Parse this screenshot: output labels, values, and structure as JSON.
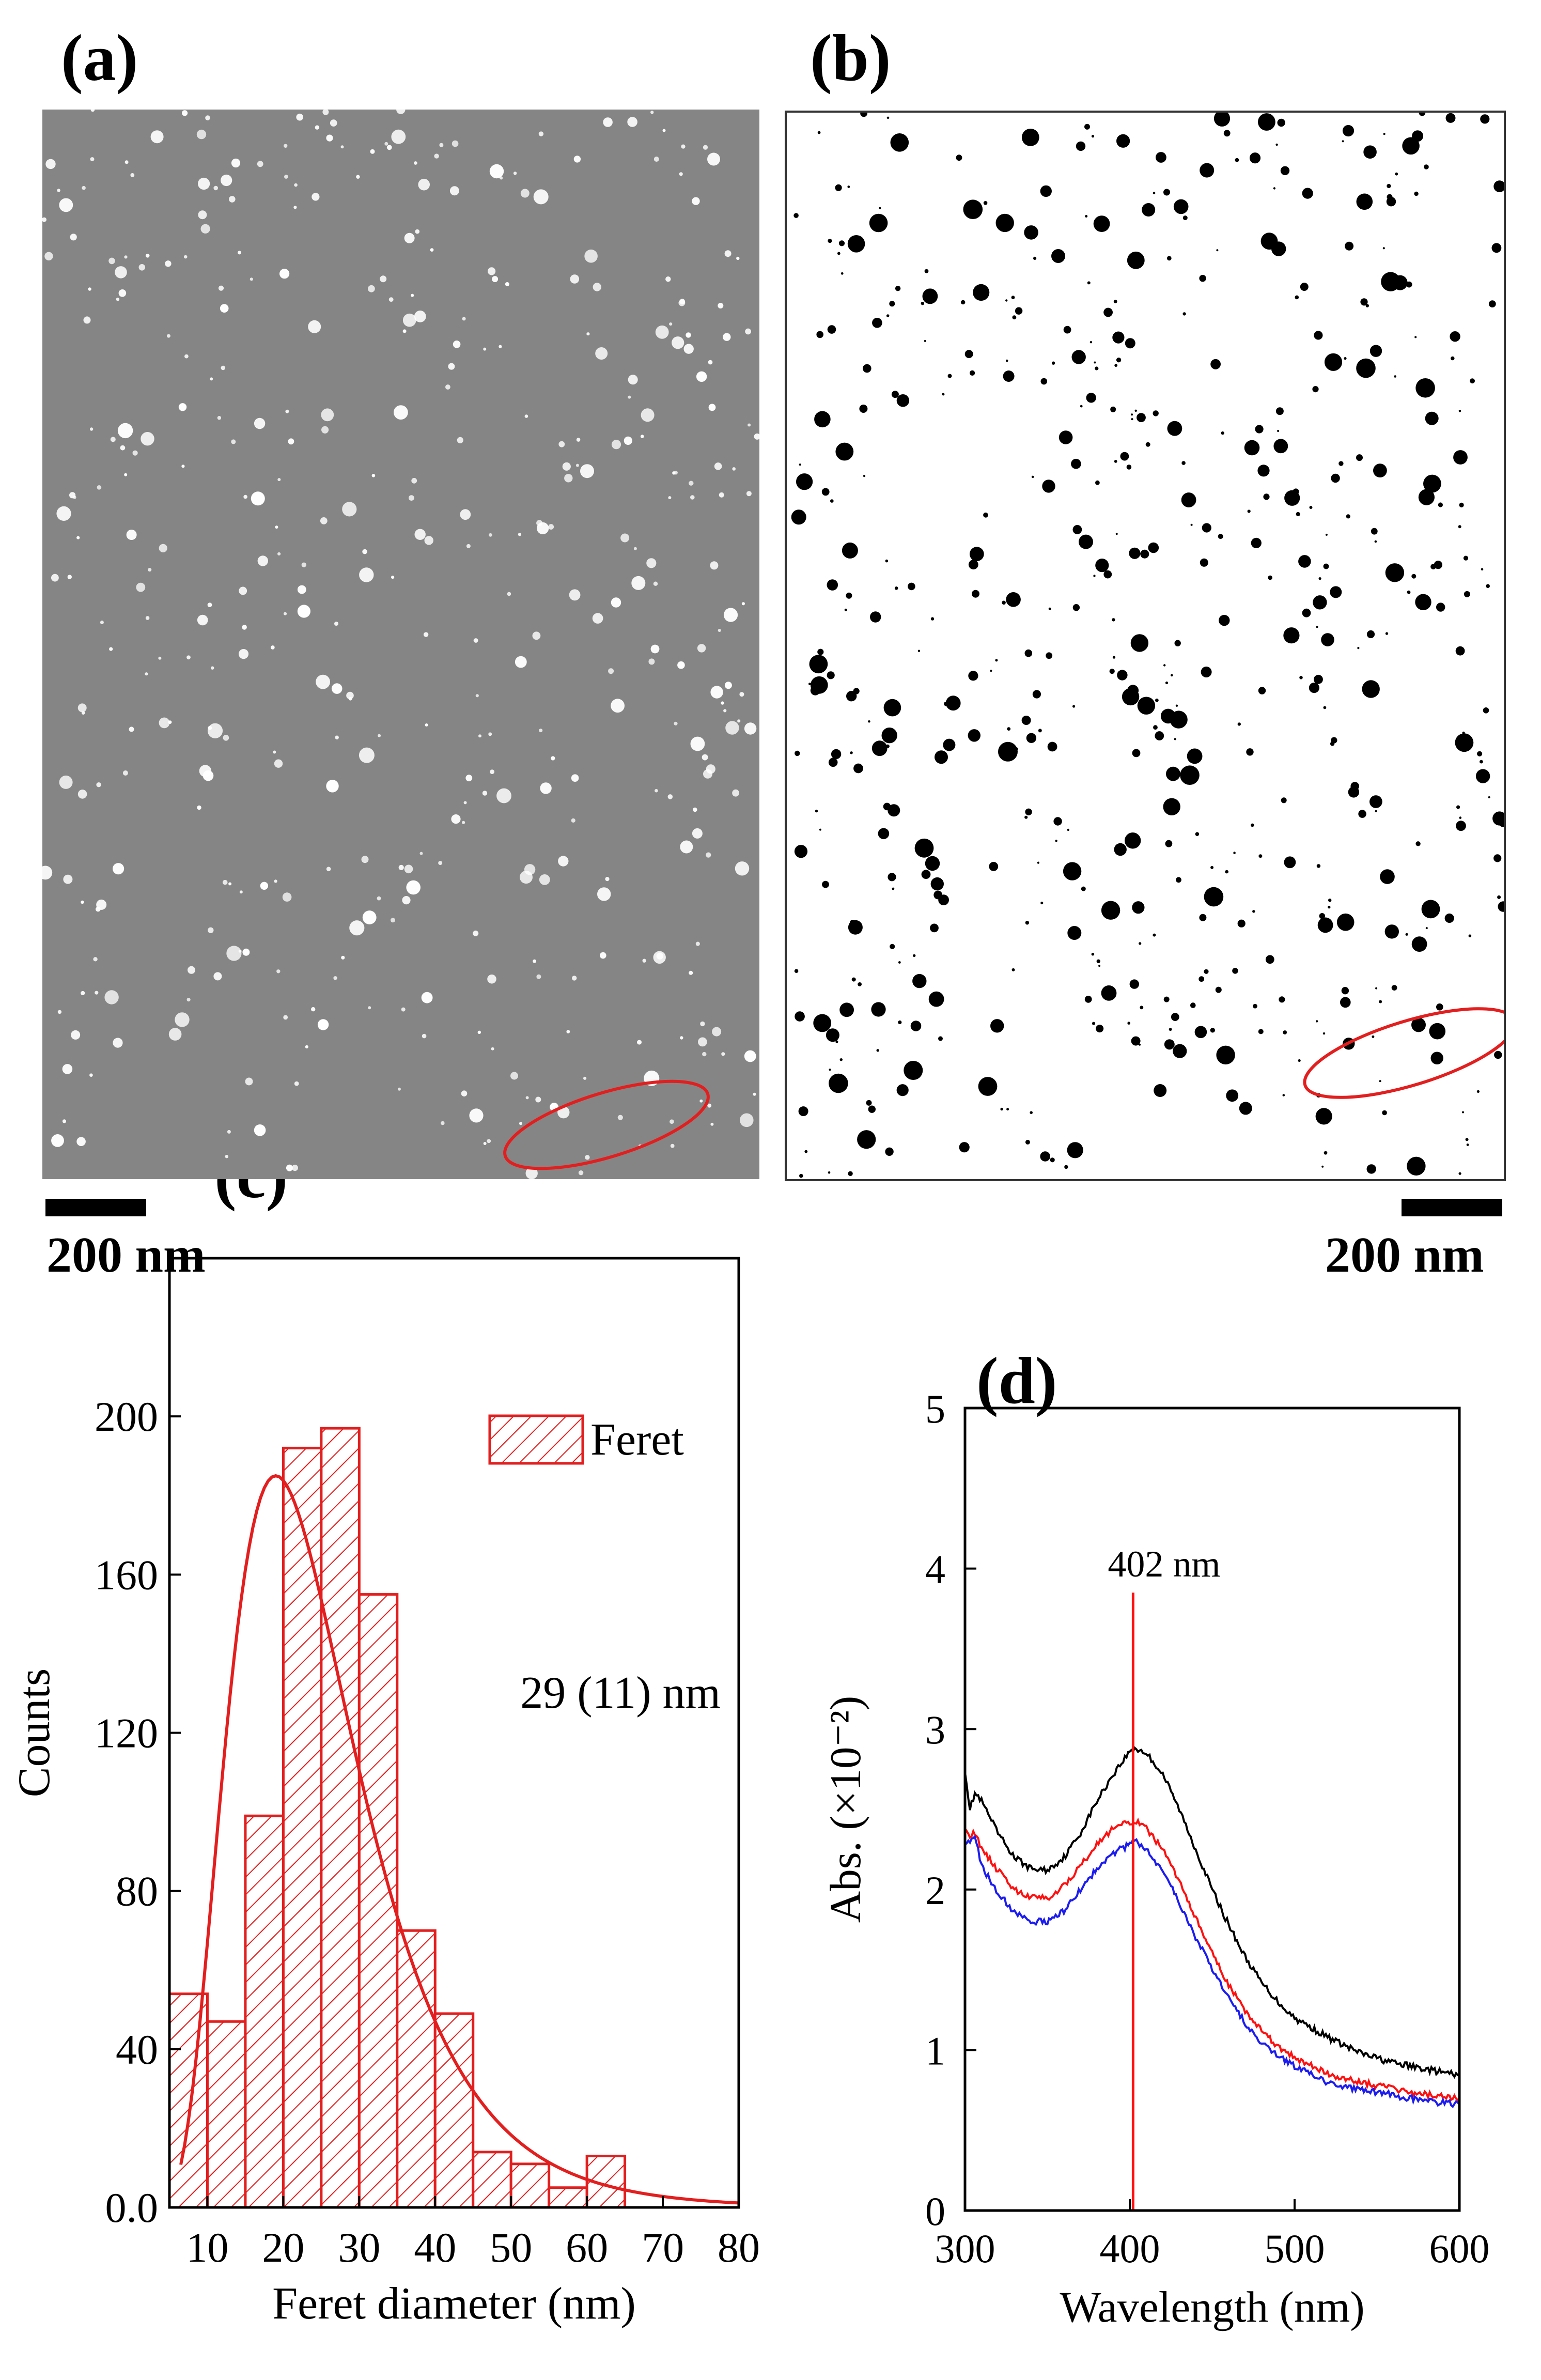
{
  "panels": {
    "a": {
      "label": "(a)",
      "scale_bar": "200 nm"
    },
    "b": {
      "label": "(b)",
      "scale_bar": "200 nm"
    },
    "c": {
      "label": "(c)"
    },
    "d": {
      "label": "(d)"
    }
  },
  "colors": {
    "sem_bg": "#858585",
    "particle_light": "#ffffff",
    "particle_dark": "#000000",
    "highlight": "#e31e1e",
    "hist": "#e31e1e",
    "series_black": "#000000",
    "series_red": "#ff1010",
    "series_blue": "#1c1cf0"
  },
  "chart_data": [
    {
      "type": "bar",
      "title": "(c)",
      "xlabel": "Feret diameter (nm)",
      "ylabel": "Counts",
      "xlim": [
        5,
        80
      ],
      "ylim": [
        0,
        240
      ],
      "xticks": [
        10,
        20,
        30,
        40,
        50,
        60,
        70,
        80
      ],
      "yticks": [
        0,
        40,
        80,
        120,
        160,
        200
      ],
      "ytick_labels": [
        "0.0",
        "40",
        "80",
        "120",
        "160",
        "200"
      ],
      "bin_width": 5,
      "bin_starts": [
        5,
        10,
        15,
        20,
        25,
        30,
        35,
        40,
        45,
        50,
        55,
        60
      ],
      "values": [
        54,
        47,
        99,
        192,
        197,
        155,
        70,
        49,
        14,
        11,
        5,
        13
      ],
      "fit": {
        "type": "lognormal",
        "peak_x": 19,
        "peak_y": 185
      },
      "legend": {
        "label": "Feret",
        "position": "top-right"
      },
      "annotation": "29 (11) nm"
    },
    {
      "type": "line",
      "title": "(d)",
      "xlabel": "Wavelength (nm)",
      "ylabel": "Abs. (×10⁻²)",
      "xlim": [
        300,
        600
      ],
      "ylim": [
        0,
        5
      ],
      "xticks": [
        300,
        400,
        500,
        600
      ],
      "yticks": [
        0,
        1,
        2,
        3,
        4,
        5
      ],
      "x": [
        300,
        303,
        306,
        310,
        320,
        330,
        340,
        350,
        360,
        370,
        380,
        390,
        400,
        403,
        410,
        420,
        430,
        440,
        450,
        460,
        470,
        480,
        490,
        500,
        520,
        540,
        560,
        580,
        600
      ],
      "series": [
        {
          "name": "black",
          "values": [
            2.75,
            2.5,
            2.6,
            2.55,
            2.35,
            2.2,
            2.13,
            2.12,
            2.2,
            2.35,
            2.55,
            2.72,
            2.86,
            2.88,
            2.85,
            2.72,
            2.5,
            2.25,
            2.0,
            1.78,
            1.58,
            1.42,
            1.3,
            1.2,
            1.08,
            0.98,
            0.92,
            0.88,
            0.84
          ]
        },
        {
          "name": "red",
          "values": [
            2.4,
            2.32,
            2.36,
            2.25,
            2.12,
            2.0,
            1.95,
            1.95,
            2.02,
            2.15,
            2.28,
            2.38,
            2.42,
            2.43,
            2.38,
            2.25,
            2.05,
            1.82,
            1.6,
            1.4,
            1.25,
            1.12,
            1.02,
            0.95,
            0.85,
            0.8,
            0.76,
            0.72,
            0.7
          ]
        },
        {
          "name": "blue",
          "values": [
            2.3,
            2.28,
            2.33,
            2.15,
            1.98,
            1.86,
            1.8,
            1.8,
            1.87,
            2.0,
            2.13,
            2.23,
            2.28,
            2.3,
            2.25,
            2.12,
            1.92,
            1.7,
            1.5,
            1.32,
            1.17,
            1.05,
            0.96,
            0.9,
            0.8,
            0.75,
            0.72,
            0.68,
            0.66
          ]
        }
      ],
      "marker_line": {
        "x": 402,
        "label": "402 nm"
      }
    }
  ]
}
